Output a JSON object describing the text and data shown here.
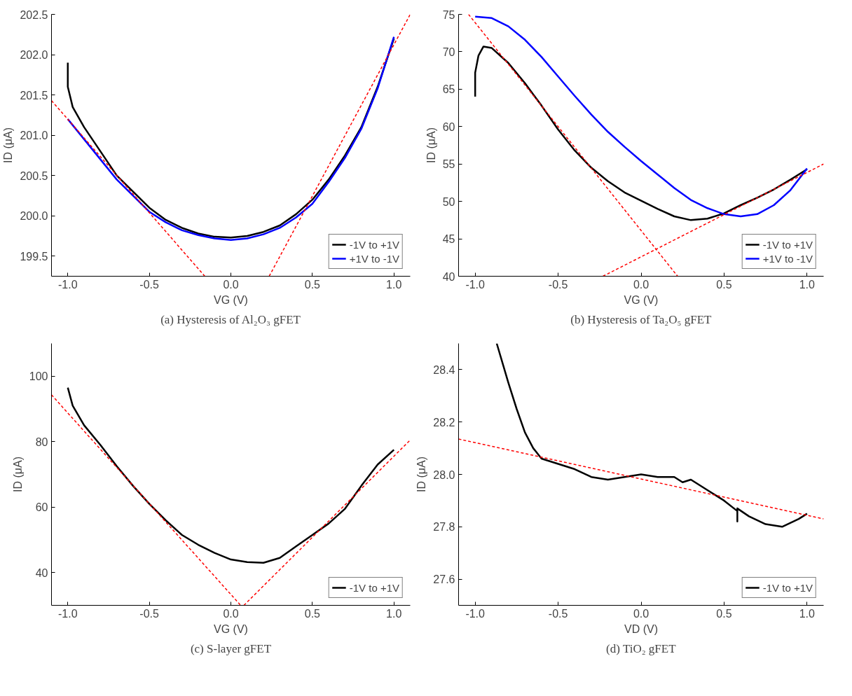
{
  "chart_data": [
    {
      "type": "line",
      "title": "(a) Hysteresis of Al₂O₃ gFET",
      "xlabel": "VG (V)",
      "ylabel": "ID (μA)",
      "xlim": [
        -1.1,
        1.1
      ],
      "ylim": [
        199.25,
        202.5
      ],
      "xticks": [
        {
          "value": -1,
          "label": "-1.0"
        },
        {
          "value": -0.5,
          "label": "-0.5"
        },
        {
          "value": 0,
          "label": "0.0"
        },
        {
          "value": 0.5,
          "label": "0.5"
        },
        {
          "value": 1,
          "label": "1.0"
        }
      ],
      "yticks": [
        {
          "value": 199.5,
          "label": "199.5"
        },
        {
          "value": 200,
          "label": "200.0"
        },
        {
          "value": 200.5,
          "label": "200.5"
        },
        {
          "value": 201,
          "label": "201.0"
        },
        {
          "value": 201.5,
          "label": "201.5"
        },
        {
          "value": 202,
          "label": "202.0"
        },
        {
          "value": 202.5,
          "label": "202.5"
        }
      ],
      "grid": false,
      "legend": "bottom right",
      "series": [
        {
          "name": "-1V to +1V",
          "color": "#000000",
          "line_style": "solid",
          "x": [
            -1,
            -1,
            -0.97,
            -0.9,
            -0.8,
            -0.7,
            -0.6,
            -0.5,
            -0.4,
            -0.3,
            -0.2,
            -0.1,
            0,
            0.1,
            0.2,
            0.3,
            0.4,
            0.5,
            0.6,
            0.7,
            0.8,
            0.9,
            1.0
          ],
          "values": [
            201.9,
            201.6,
            201.35,
            201.1,
            200.8,
            200.5,
            200.3,
            200.1,
            199.95,
            199.85,
            199.78,
            199.74,
            199.73,
            199.75,
            199.8,
            199.88,
            200.02,
            200.2,
            200.45,
            200.75,
            201.1,
            201.6,
            202.2
          ]
        },
        {
          "name": "+1V to -1V",
          "color": "#0000ff",
          "line_style": "solid",
          "x": [
            1.0,
            0.9,
            0.8,
            0.7,
            0.6,
            0.5,
            0.4,
            0.3,
            0.2,
            0.1,
            0,
            -0.1,
            -0.2,
            -0.3,
            -0.4,
            -0.5,
            -0.6,
            -0.7,
            -0.8,
            -0.9,
            -1
          ],
          "values": [
            202.22,
            201.58,
            201.08,
            200.72,
            200.42,
            200.15,
            199.98,
            199.85,
            199.77,
            199.72,
            199.7,
            199.72,
            199.76,
            199.82,
            199.92,
            200.05,
            200.25,
            200.45,
            200.7,
            200.95,
            201.2
          ]
        },
        {
          "color": "#ff0000",
          "line_style": "dashed",
          "x": [
            -1.1,
            -0.16
          ],
          "values": [
            201.43,
            199.25
          ]
        },
        {
          "color": "#ff0000",
          "line_style": "dashed",
          "x": [
            0.235,
            1.1
          ],
          "values": [
            199.25,
            202.5
          ]
        }
      ]
    },
    {
      "type": "line",
      "title": "(b) Hysteresis of Ta₂O₅ gFET",
      "xlabel": "VG (V)",
      "ylabel": "ID (μA)",
      "xlim": [
        -1.1,
        1.1
      ],
      "ylim": [
        40,
        75
      ],
      "xticks": [
        {
          "value": -1,
          "label": "-1.0"
        },
        {
          "value": -0.5,
          "label": "-0.5"
        },
        {
          "value": 0,
          "label": "0.0"
        },
        {
          "value": 0.5,
          "label": "0.5"
        },
        {
          "value": 1,
          "label": "1.0"
        }
      ],
      "yticks": [
        40,
        45,
        50,
        55,
        60,
        65,
        70,
        75
      ],
      "grid": false,
      "legend": "bottom right",
      "series": [
        {
          "name": "-1V to +1V",
          "color": "#000000",
          "line_style": "solid",
          "x": [
            -1,
            -1,
            -0.98,
            -0.95,
            -0.9,
            -0.8,
            -0.7,
            -0.6,
            -0.5,
            -0.4,
            -0.3,
            -0.2,
            -0.1,
            0,
            0.1,
            0.2,
            0.3,
            0.4,
            0.5,
            0.6,
            0.7,
            0.8,
            0.9,
            1.0
          ],
          "values": [
            64,
            67.2,
            69.5,
            70.7,
            70.5,
            68.5,
            65.8,
            62.8,
            59.6,
            56.8,
            54.5,
            52.7,
            51.2,
            50.1,
            49,
            48,
            47.5,
            47.7,
            48.4,
            49.5,
            50.5,
            51.6,
            52.9,
            54.3
          ]
        },
        {
          "name": "+1V to -1V",
          "color": "#0000ff",
          "line_style": "solid",
          "x": [
            1.0,
            0.9,
            0.8,
            0.7,
            0.6,
            0.5,
            0.4,
            0.3,
            0.2,
            0.1,
            0,
            -0.1,
            -0.2,
            -0.3,
            -0.4,
            -0.5,
            -0.6,
            -0.7,
            -0.8,
            -0.9,
            -1
          ],
          "values": [
            54.4,
            51.5,
            49.5,
            48.3,
            48,
            48.3,
            49.1,
            50.2,
            51.8,
            53.6,
            55.4,
            57.3,
            59.3,
            61.6,
            64.1,
            66.7,
            69.3,
            71.6,
            73.4,
            74.5,
            74.7
          ]
        },
        {
          "color": "#ff0000",
          "line_style": "dashed",
          "x": [
            -1.04,
            0.22
          ],
          "values": [
            75,
            40
          ]
        },
        {
          "color": "#ff0000",
          "line_style": "dashed",
          "x": [
            -0.23,
            1.1
          ],
          "values": [
            40,
            55
          ]
        }
      ]
    },
    {
      "type": "line",
      "title": "(c) S-layer gFET",
      "xlabel": "VG (V)",
      "ylabel": "ID (μA)",
      "xlim": [
        -1.1,
        1.1
      ],
      "ylim": [
        30,
        110
      ],
      "xticks": [
        {
          "value": -1,
          "label": "-1.0"
        },
        {
          "value": -0.5,
          "label": "-0.5"
        },
        {
          "value": 0,
          "label": "0.0"
        },
        {
          "value": 0.5,
          "label": "0.5"
        },
        {
          "value": 1,
          "label": "1.0"
        }
      ],
      "yticks": [
        40,
        60,
        80,
        100
      ],
      "grid": false,
      "legend": "bottom right",
      "series": [
        {
          "name": "-1V to +1V",
          "color": "#000000",
          "line_style": "solid",
          "x": [
            -1,
            -0.97,
            -0.9,
            -0.8,
            -0.7,
            -0.6,
            -0.5,
            -0.4,
            -0.3,
            -0.2,
            -0.1,
            0,
            0.1,
            0.2,
            0.3,
            0.4,
            0.5,
            0.6,
            0.7,
            0.8,
            0.9,
            1.0
          ],
          "values": [
            96.5,
            91,
            85,
            79,
            72.5,
            66.5,
            61,
            56,
            51.5,
            48.5,
            46,
            44,
            43.2,
            43,
            44.5,
            48,
            51.5,
            55,
            59.5,
            66.5,
            73,
            77.5
          ]
        },
        {
          "color": "#ff0000",
          "line_style": "dashed",
          "x": [
            -1.1,
            0.06
          ],
          "values": [
            94.3,
            30
          ]
        },
        {
          "color": "#ff0000",
          "line_style": "dashed",
          "x": [
            0.08,
            1.1
          ],
          "values": [
            30,
            80.5
          ]
        }
      ]
    },
    {
      "type": "line",
      "title": "(d) TiO₂ gFET",
      "xlabel": "VD (V)",
      "ylabel": "ID (μA)",
      "xlim": [
        -1.1,
        1.1
      ],
      "ylim": [
        27.5,
        28.5
      ],
      "xticks": [
        {
          "value": -1,
          "label": "-1.0"
        },
        {
          "value": -0.5,
          "label": "-0.5"
        },
        {
          "value": 0,
          "label": "0.0"
        },
        {
          "value": 0.5,
          "label": "0.5"
        },
        {
          "value": 1,
          "label": "1.0"
        }
      ],
      "yticks": [
        27.6,
        27.8,
        {
          "value": 28,
          "label": "28.0"
        },
        28.2,
        28.4
      ],
      "grid": false,
      "legend": "bottom right",
      "series": [
        {
          "name": "-1V to +1V",
          "color": "#000000",
          "line_style": "solid",
          "x": [
            -0.87,
            -0.8,
            -0.75,
            -0.7,
            -0.65,
            -0.6,
            -0.5,
            -0.4,
            -0.3,
            -0.2,
            -0.1,
            0,
            0.1,
            0.2,
            0.25,
            0.3,
            0.4,
            0.5,
            0.58,
            0.58,
            0.58,
            0.65,
            0.75,
            0.85,
            0.95,
            1.0
          ],
          "values": [
            28.5,
            28.35,
            28.25,
            28.16,
            28.1,
            28.06,
            28.04,
            28.02,
            27.99,
            27.98,
            27.99,
            28.0,
            27.99,
            27.99,
            27.97,
            27.98,
            27.94,
            27.9,
            27.86,
            27.82,
            27.87,
            27.84,
            27.81,
            27.8,
            27.83,
            27.85
          ]
        },
        {
          "color": "#ff0000",
          "line_style": "dashed",
          "x": [
            -1.1,
            1.1
          ],
          "values": [
            28.135,
            27.83
          ]
        }
      ]
    }
  ]
}
